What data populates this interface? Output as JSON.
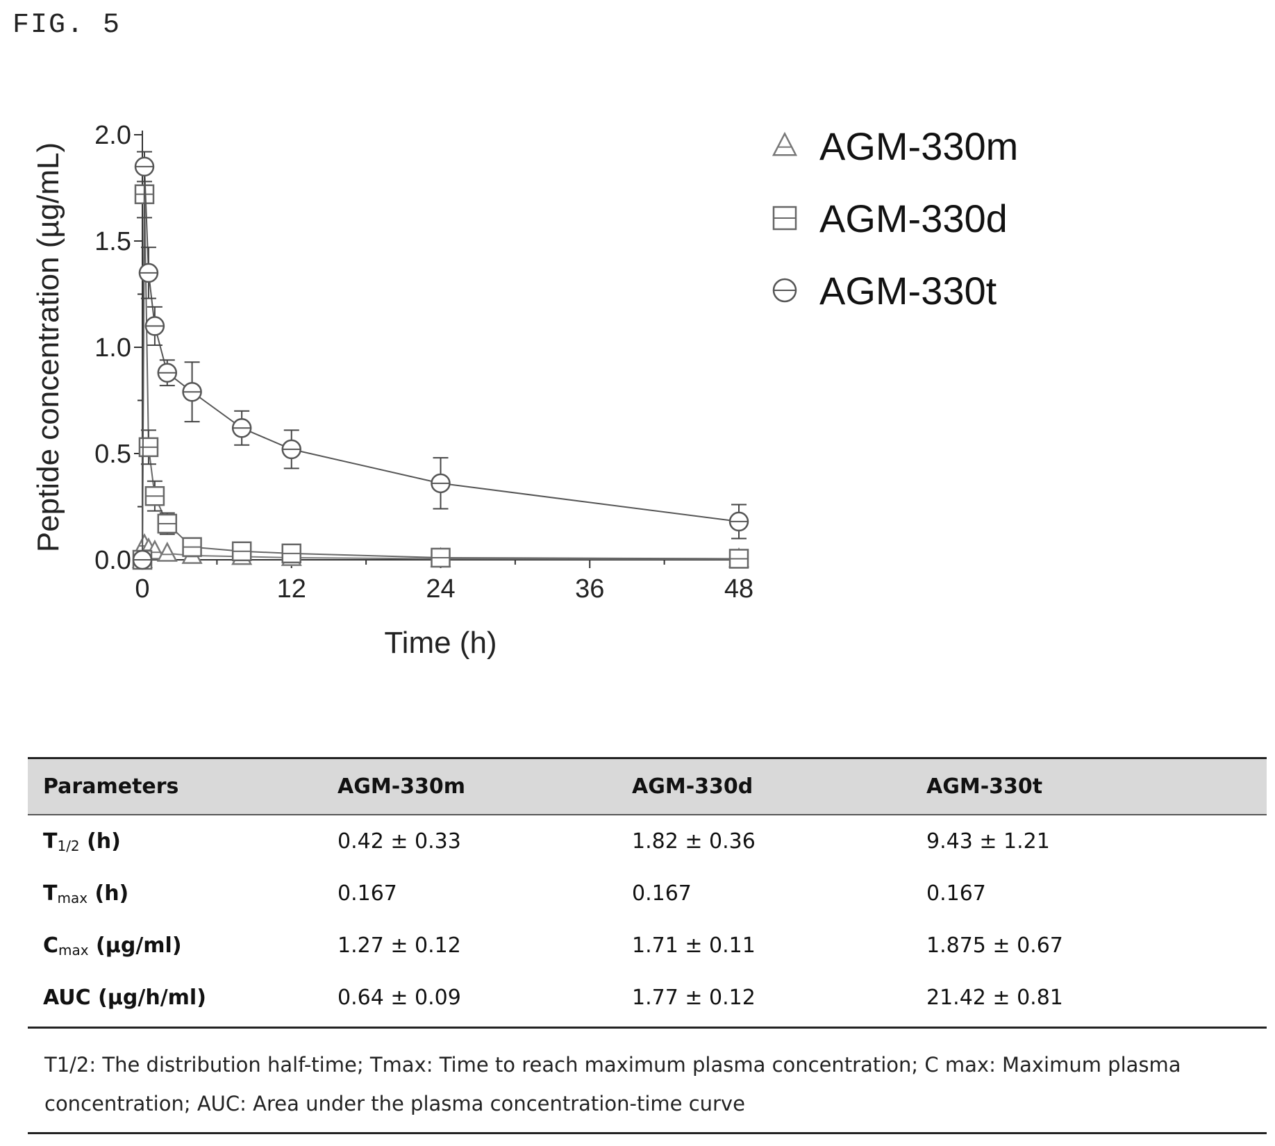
{
  "figure_label": "FIG. 5",
  "chart_data": {
    "type": "line",
    "title": "",
    "xlabel": "Time (h)",
    "ylabel": "Peptide concentration (µg/mL)",
    "xlim": [
      0,
      48
    ],
    "ylim": [
      0,
      2.0
    ],
    "xticks": [
      0,
      12,
      24,
      36,
      48
    ],
    "yticks": [
      0.0,
      0.5,
      1.0,
      1.5,
      2.0
    ],
    "xtick_labels": [
      "0",
      "12",
      "24",
      "36",
      "48"
    ],
    "ytick_labels": [
      "0.0",
      "0.5",
      "1.0",
      "1.5",
      "2.0"
    ],
    "legend_position": "top-right",
    "grid": false,
    "series": [
      {
        "name": "AGM-330m",
        "marker": "triangle",
        "color": "#777777",
        "x": [
          0,
          0.167,
          0.5,
          1,
          2,
          4,
          8,
          12,
          24,
          48
        ],
        "y": [
          0,
          0.07,
          0.05,
          0.04,
          0.03,
          0.02,
          0.015,
          0.01,
          0.005,
          0.003
        ],
        "err": [
          0,
          0,
          0,
          0,
          0,
          0,
          0,
          0,
          0,
          0
        ]
      },
      {
        "name": "AGM-330d",
        "marker": "square",
        "color": "#666666",
        "x": [
          0,
          0.167,
          0.5,
          1,
          2,
          4,
          8,
          12,
          24,
          48
        ],
        "y": [
          0,
          1.72,
          0.53,
          0.3,
          0.17,
          0.06,
          0.04,
          0.03,
          0.01,
          0.005
        ],
        "err": [
          0,
          0.11,
          0.08,
          0.07,
          0.05,
          0.02,
          0.01,
          0.01,
          0,
          0
        ]
      },
      {
        "name": "AGM-330t",
        "marker": "circle",
        "color": "#555555",
        "x": [
          0,
          0.167,
          0.5,
          1,
          2,
          4,
          8,
          12,
          24,
          48
        ],
        "y": [
          0,
          1.85,
          1.35,
          1.1,
          0.88,
          0.79,
          0.62,
          0.52,
          0.36,
          0.18
        ],
        "err": [
          0,
          0.07,
          0.12,
          0.09,
          0.06,
          0.14,
          0.08,
          0.09,
          0.12,
          0.08
        ]
      }
    ]
  },
  "table": {
    "headers": [
      "Parameters",
      "AGM-330m",
      "AGM-330d",
      "AGM-330t"
    ],
    "rows": [
      {
        "param_main": "T",
        "param_sub": "1/2",
        "param_rest": " (h)",
        "values": [
          "0.42 ± 0.33",
          "1.82 ± 0.36",
          "9.43 ± 1.21"
        ]
      },
      {
        "param_main": "T",
        "param_sub": "max",
        "param_rest": " (h)",
        "values": [
          "0.167",
          "0.167",
          "0.167"
        ]
      },
      {
        "param_main": "C",
        "param_sub": "max",
        "param_rest": " (µg/ml)",
        "values": [
          "1.27 ± 0.12",
          "1.71 ± 0.11",
          "1.875 ± 0.67"
        ]
      },
      {
        "param_main": "AUC",
        "param_sub": "",
        "param_rest": " (µg/h/ml)",
        "values": [
          "0.64 ± 0.09",
          "1.77 ± 0.12",
          "21.42 ± 0.81"
        ]
      }
    ]
  },
  "footnote": "T1/2: The distribution half-time; Tmax: Time to reach maximum plasma concentration; C max: Maximum plasma concentration; AUC: Area under the plasma concentration-time curve"
}
